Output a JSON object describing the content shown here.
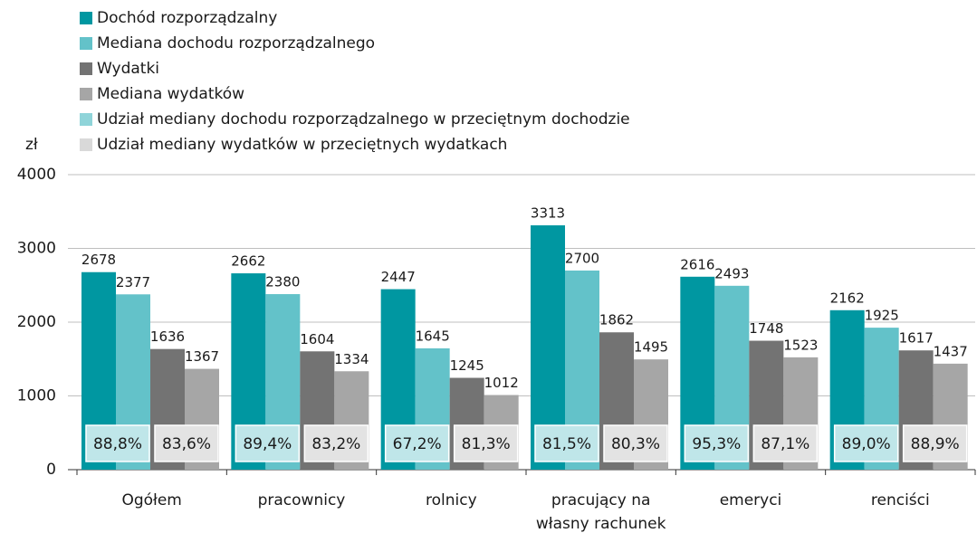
{
  "chart_data": {
    "type": "bar",
    "y_label": "zł",
    "categories": [
      "Ogółem",
      "pracownicy",
      "rolnicy",
      "pracujący na\nwłasny rachunek",
      "emeryci",
      "renciści"
    ],
    "series": [
      {
        "name": "Dochód rozporządzalny",
        "color": "#0097a1",
        "values": [
          2678,
          2662,
          2447,
          3313,
          2616,
          2162
        ]
      },
      {
        "name": "Mediana dochodu rozporządzalnego",
        "color": "#63c2c9",
        "values": [
          2377,
          2380,
          1645,
          2700,
          2493,
          1925
        ]
      },
      {
        "name": "Wydatki",
        "color": "#737373",
        "values": [
          1636,
          1604,
          1245,
          1862,
          1748,
          1617
        ]
      },
      {
        "name": "Mediana wydatków",
        "color": "#a6a6a6",
        "values": [
          1367,
          1334,
          1012,
          1495,
          1523,
          1437
        ]
      }
    ],
    "shares": [
      {
        "name": "Udział mediany dochodu rozporządzalnego w przeciętnym dochodzie",
        "color": "#8fd4d9",
        "box_color": "#bfe6e9",
        "values": [
          88.8,
          89.4,
          67.2,
          81.5,
          95.3,
          89.0
        ],
        "value_labels": [
          "88,8%",
          "89,4%",
          "67,2%",
          "81,5%",
          "95,3%",
          "89,0%"
        ]
      },
      {
        "name": "Udział mediany wydatków w przeciętnych wydatkach",
        "color": "#d9d9d9",
        "box_color": "#e3e3e3",
        "values": [
          83.6,
          83.2,
          81.3,
          80.3,
          87.1,
          88.9
        ],
        "value_labels": [
          "83,6%",
          "83,2%",
          "81,3%",
          "80,3%",
          "87,1%",
          "88,9%"
        ]
      }
    ],
    "ylim": [
      0,
      4000
    ],
    "yticks": [
      0,
      1000,
      2000,
      3000,
      4000
    ],
    "grid": true
  }
}
